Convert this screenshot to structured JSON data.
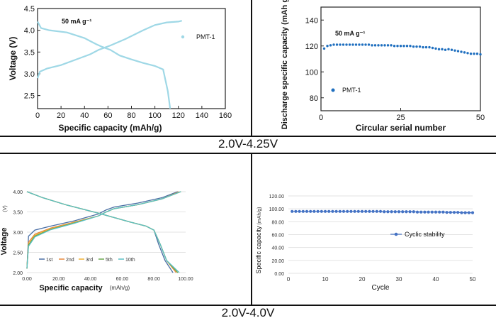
{
  "captions": {
    "top": "2.0V-4.25V",
    "bottom": "2.0V-4.0V"
  },
  "chart_data": [
    {
      "type": "line",
      "title": "",
      "annotation": "50 mA g⁻¹",
      "xlabel": "Specific capacity (mAh/g)",
      "ylabel": "Voltage (V)",
      "xlim": [
        0,
        160
      ],
      "ylim": [
        2.2,
        4.5
      ],
      "xticks": [
        "0",
        "20",
        "40",
        "60",
        "80",
        "100",
        "120",
        "140",
        "160"
      ],
      "yticks": [
        "2.5",
        "3.0",
        "3.5",
        "4.0",
        "4.5"
      ],
      "legend": [
        "PMT-1"
      ],
      "color": "#9fd8e6",
      "series": [
        {
          "name": "PMT-1 charge",
          "x": [
            0,
            2,
            8,
            20,
            35,
            45,
            52,
            57,
            62,
            75,
            90,
            100,
            110,
            120,
            123
          ],
          "y": [
            2.9,
            3.05,
            3.12,
            3.2,
            3.35,
            3.45,
            3.55,
            3.6,
            3.65,
            3.8,
            4.0,
            4.12,
            4.18,
            4.2,
            4.22
          ]
        },
        {
          "name": "PMT-1 discharge",
          "x": [
            0,
            3,
            10,
            25,
            40,
            50,
            55,
            62,
            70,
            80,
            90,
            100,
            107,
            111,
            113
          ],
          "y": [
            4.2,
            4.05,
            4.0,
            3.95,
            3.82,
            3.68,
            3.62,
            3.55,
            3.42,
            3.33,
            3.25,
            3.18,
            3.1,
            2.6,
            2.2
          ]
        }
      ]
    },
    {
      "type": "scatter",
      "title": "",
      "annotation": "50 mA g⁻¹",
      "xlabel": "Circular serial number",
      "ylabel": "Discharge specific capacity (mAh g⁻¹)",
      "xlim": [
        0,
        50
      ],
      "ylim": [
        70,
        150
      ],
      "xticks": [
        "0",
        "25",
        "50"
      ],
      "yticks": [
        "80",
        "100",
        "120",
        "140"
      ],
      "legend": [
        "PMT-1"
      ],
      "color": "#1f6fbf",
      "series": [
        {
          "name": "PMT-1",
          "x": [
            1,
            2,
            3,
            4,
            5,
            6,
            7,
            8,
            9,
            10,
            11,
            12,
            13,
            14,
            15,
            16,
            17,
            18,
            19,
            20,
            21,
            22,
            23,
            24,
            25,
            26,
            27,
            28,
            29,
            30,
            31,
            32,
            33,
            34,
            35,
            36,
            37,
            38,
            39,
            40,
            41,
            42,
            43,
            44,
            45,
            46,
            47,
            48,
            49,
            50
          ],
          "y": [
            118,
            120,
            120.5,
            121,
            121,
            121,
            121,
            121,
            121,
            121,
            121,
            121,
            121,
            121,
            121,
            120.5,
            120.5,
            120.5,
            120.5,
            120.5,
            120.5,
            120.5,
            120,
            120,
            120,
            120,
            120,
            120,
            119.5,
            119.5,
            119.5,
            119,
            119,
            119,
            118.5,
            118,
            117.5,
            117.5,
            117,
            117.5,
            117,
            116.5,
            116,
            115.5,
            115,
            114.5,
            114,
            114,
            114,
            113.5
          ]
        }
      ]
    },
    {
      "type": "line",
      "title": "",
      "xlabel": "Specific capacity",
      "xunit": "(mAh/g)",
      "ylabel": "Voltage",
      "yunit": "(V)",
      "xlim": [
        0,
        100
      ],
      "ylim": [
        2.0,
        4.0
      ],
      "xticks": [
        "0.00",
        "20.00",
        "40.00",
        "60.00",
        "80.00",
        "100.00"
      ],
      "yticks": [
        "2.00",
        "2.50",
        "3.00",
        "3.50",
        "4.00"
      ],
      "legend": [
        "1st",
        "2nd",
        "3rd",
        "5th",
        "10th"
      ],
      "series": [
        {
          "name": "1st",
          "color": "#4a6fa5",
          "charge_x": [
            0,
            1,
            5,
            15,
            30,
            45,
            50,
            55,
            70,
            85,
            95
          ],
          "charge_y": [
            2.1,
            2.9,
            3.05,
            3.15,
            3.28,
            3.45,
            3.55,
            3.62,
            3.72,
            3.85,
            4.0
          ],
          "discharge_x": [
            0,
            10,
            25,
            40,
            45,
            55,
            65,
            75,
            80,
            83,
            87,
            92
          ],
          "discharge_y": [
            4.0,
            3.85,
            3.67,
            3.52,
            3.47,
            3.36,
            3.25,
            3.15,
            3.05,
            2.7,
            2.3,
            2.0
          ]
        },
        {
          "name": "2nd",
          "color": "#e8893a",
          "charge_x": [
            0,
            1,
            5,
            15,
            30,
            45,
            50,
            55,
            70,
            85,
            96
          ],
          "charge_y": [
            2.1,
            2.75,
            2.95,
            3.1,
            3.25,
            3.4,
            3.5,
            3.58,
            3.68,
            3.82,
            4.0
          ],
          "discharge_x": [
            0,
            10,
            25,
            40,
            45,
            55,
            65,
            75,
            80,
            84,
            88,
            94
          ],
          "discharge_y": [
            4.0,
            3.85,
            3.67,
            3.52,
            3.47,
            3.36,
            3.25,
            3.15,
            3.05,
            2.7,
            2.3,
            2.0
          ]
        },
        {
          "name": "3rd",
          "color": "#f0b030",
          "charge_x": [
            0,
            1,
            5,
            15,
            30,
            45,
            50,
            55,
            70,
            85,
            97
          ],
          "charge_y": [
            2.1,
            2.7,
            2.92,
            3.08,
            3.24,
            3.4,
            3.5,
            3.58,
            3.68,
            3.82,
            4.0
          ],
          "discharge_x": [
            0,
            10,
            25,
            40,
            45,
            55,
            65,
            75,
            80,
            84,
            88,
            95
          ],
          "discharge_y": [
            4.0,
            3.85,
            3.67,
            3.52,
            3.47,
            3.36,
            3.25,
            3.15,
            3.05,
            2.7,
            2.3,
            2.0
          ]
        },
        {
          "name": "5th",
          "color": "#6aa84f",
          "charge_x": [
            0,
            1,
            5,
            15,
            30,
            45,
            50,
            55,
            70,
            85,
            97
          ],
          "charge_y": [
            2.1,
            2.68,
            2.9,
            3.07,
            3.23,
            3.4,
            3.5,
            3.58,
            3.68,
            3.82,
            4.0
          ],
          "discharge_x": [
            0,
            10,
            25,
            40,
            45,
            55,
            65,
            75,
            80,
            84,
            88,
            95
          ],
          "discharge_y": [
            4.0,
            3.85,
            3.67,
            3.52,
            3.47,
            3.36,
            3.25,
            3.15,
            3.05,
            2.7,
            2.3,
            2.0
          ]
        },
        {
          "name": "10th",
          "color": "#5bc0c6",
          "charge_x": [
            0,
            1,
            5,
            15,
            30,
            45,
            50,
            55,
            70,
            85,
            97
          ],
          "charge_y": [
            2.1,
            2.65,
            2.88,
            3.06,
            3.22,
            3.4,
            3.5,
            3.58,
            3.68,
            3.82,
            4.0
          ],
          "discharge_x": [
            0,
            10,
            25,
            40,
            45,
            55,
            65,
            75,
            80,
            84,
            88,
            96
          ],
          "discharge_y": [
            4.0,
            3.85,
            3.67,
            3.52,
            3.47,
            3.36,
            3.25,
            3.15,
            3.05,
            2.7,
            2.3,
            2.0
          ]
        }
      ]
    },
    {
      "type": "line",
      "title": "",
      "xlabel": "Cycle",
      "ylabel": "Specific capacity",
      "yunit": "(mAh/g)",
      "xlim": [
        0,
        50
      ],
      "ylim": [
        0,
        120
      ],
      "xticks": [
        "0",
        "10",
        "20",
        "30",
        "40",
        "50"
      ],
      "yticks": [
        "0.00",
        "20.00",
        "40.00",
        "60.00",
        "80.00",
        "100.00",
        "120.00"
      ],
      "legend": [
        "Cyclic stability"
      ],
      "color": "#4472c4",
      "series": [
        {
          "name": "Cyclic stability",
          "x": [
            1,
            2,
            3,
            4,
            5,
            6,
            7,
            8,
            9,
            10,
            11,
            12,
            13,
            14,
            15,
            16,
            17,
            18,
            19,
            20,
            21,
            22,
            23,
            24,
            25,
            26,
            27,
            28,
            29,
            30,
            31,
            32,
            33,
            34,
            35,
            36,
            37,
            38,
            39,
            40,
            41,
            42,
            43,
            44,
            45,
            46,
            47,
            48,
            49,
            50
          ],
          "y": [
            96,
            96,
            96,
            96,
            96,
            96,
            96,
            96,
            96,
            96,
            96,
            96,
            96,
            96,
            96,
            96,
            96,
            96,
            96,
            96,
            96,
            96,
            96,
            96,
            96,
            95.5,
            95.5,
            95.5,
            95.5,
            95.5,
            95.5,
            95.5,
            95.5,
            95.5,
            95,
            95,
            95,
            95,
            95,
            95,
            95,
            95,
            94.5,
            94.5,
            94.5,
            94.5,
            94,
            94,
            94,
            94
          ]
        }
      ]
    }
  ]
}
